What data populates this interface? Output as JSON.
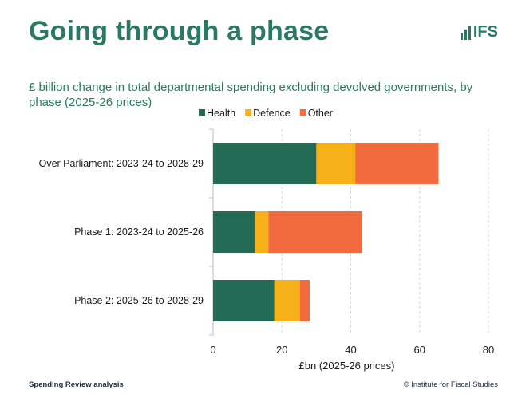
{
  "slide": {
    "title": "Going through a phase",
    "subtitle": "£ billion change in total departmental spending excluding devolved governments, by phase (2025-26 prices)",
    "logo_text": "IFS",
    "footer_left": "Spending Review analysis",
    "footer_right": "© Institute for Fiscal Studies"
  },
  "chart_data": {
    "type": "bar",
    "orientation": "horizontal",
    "stacked": true,
    "categories": [
      "Over Parliament: 2023-24 to 2028-29",
      "Phase 1: 2023-24 to 2025-26",
      "Phase 2: 2025-26 to 2028-29"
    ],
    "series": [
      {
        "name": "Health",
        "color": "#236b55",
        "values": [
          30,
          12.2,
          17.8
        ]
      },
      {
        "name": "Defence",
        "color": "#f6b11a",
        "values": [
          11.3,
          3.9,
          7.4
        ]
      },
      {
        "name": "Other",
        "color": "#f26b3f",
        "values": [
          24.2,
          27.2,
          2.9
        ]
      }
    ],
    "xlabel": "£bn (2025-26 prices)",
    "ylabel": "",
    "xlim": [
      0,
      80
    ],
    "xticks": [
      0,
      20,
      40,
      60,
      80
    ],
    "gridlines": true,
    "legend_position": "top"
  }
}
